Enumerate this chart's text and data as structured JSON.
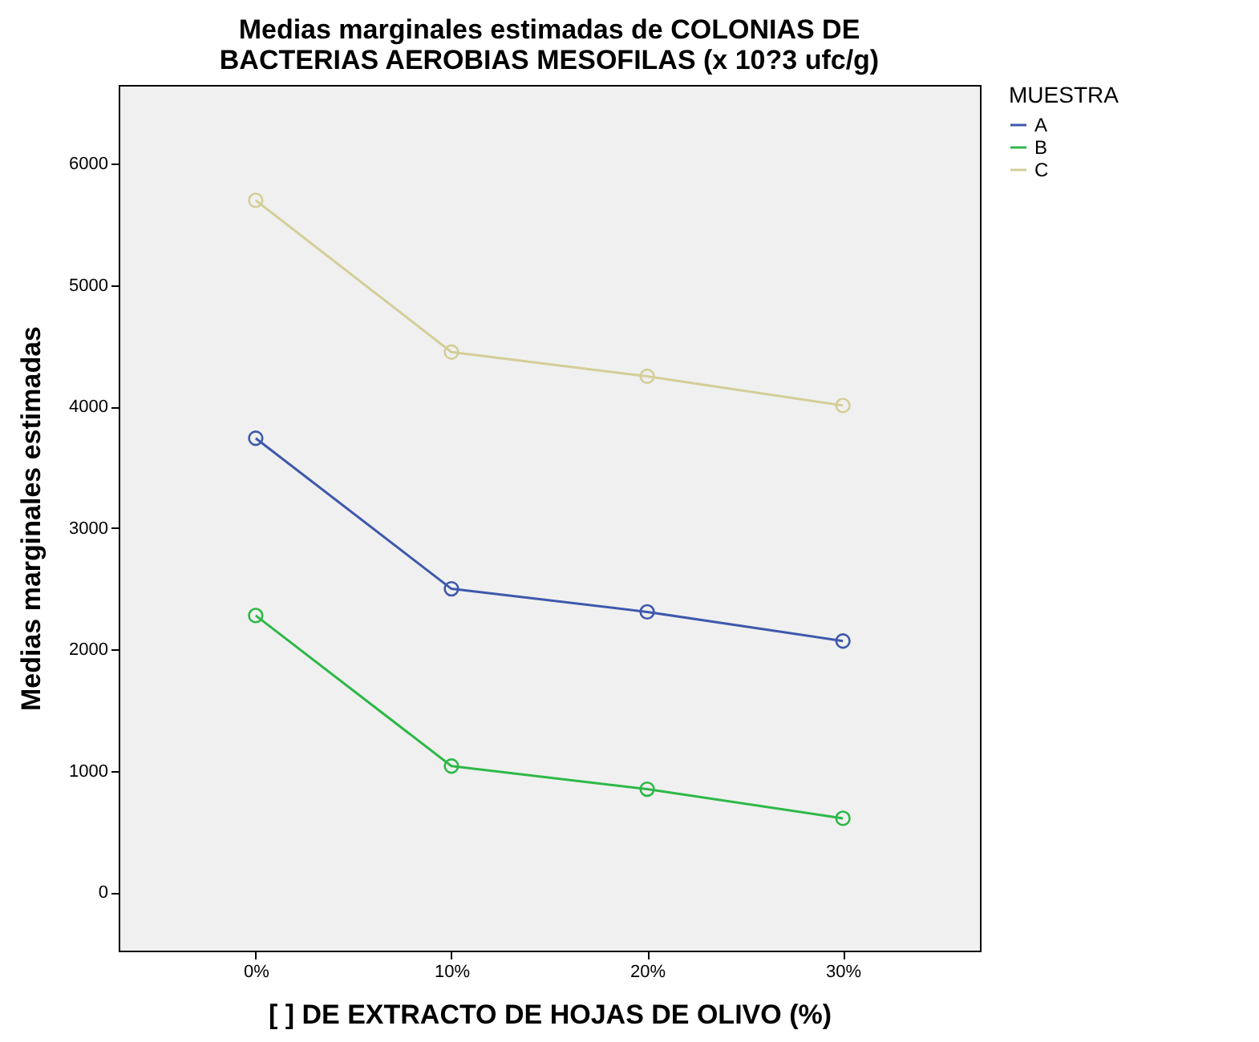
{
  "chart_data": {
    "type": "line",
    "title": "Medias marginales estimadas de COLONIAS DE BACTERIAS AEROBIAS MESOFILAS (x 10?3 ufc/g)",
    "xlabel": "[  ] DE EXTRACTO DE HOJAS DE OLIVO (%)",
    "ylabel": "Medias marginales estimadas",
    "legend_title": "MUESTRA",
    "categories": [
      "0%",
      "10%",
      "20%",
      "30%"
    ],
    "series": [
      {
        "name": "A",
        "color": "#3e58ac",
        "values": [
          3740,
          2500,
          2310,
          2070
        ]
      },
      {
        "name": "B",
        "color": "#2eb848",
        "values": [
          2280,
          1040,
          850,
          610
        ]
      },
      {
        "name": "C",
        "color": "#d3ce97",
        "values": [
          5700,
          4450,
          4250,
          4010
        ]
      }
    ],
    "ylim": [
      -480,
      6650
    ],
    "yticks": [
      0,
      1000,
      2000,
      3000,
      4000,
      5000,
      6000
    ],
    "grid": false,
    "legend": "right",
    "marker": "circle",
    "line_style": "solid"
  }
}
